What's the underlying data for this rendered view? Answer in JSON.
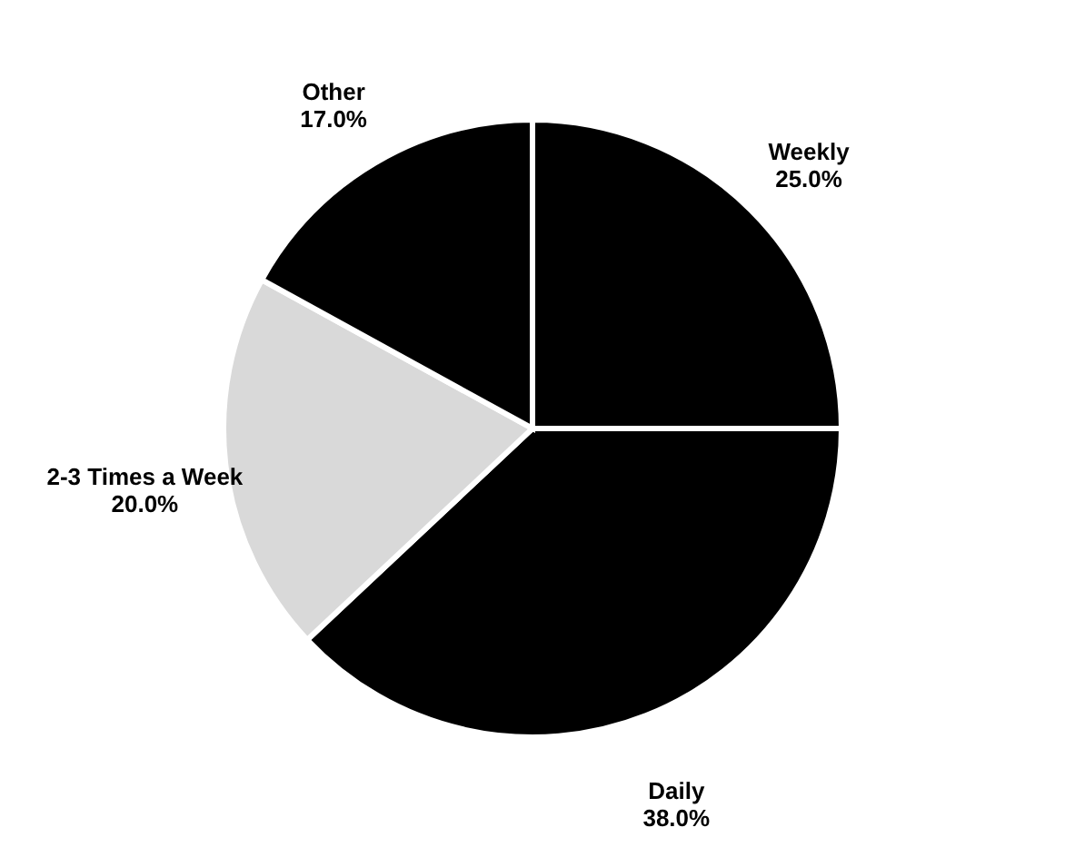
{
  "chart_data": {
    "type": "pie",
    "categories": [
      "Weekly",
      "Daily",
      "2-3 Times a Week",
      "Other"
    ],
    "values": [
      25,
      38,
      20,
      17
    ],
    "colors": [
      "#000000",
      "#000000",
      "#d9d9d9",
      "#000000"
    ],
    "value_labels": [
      "25.0%",
      "38.0%",
      "20.0%",
      "17.0%"
    ],
    "legend": false
  }
}
